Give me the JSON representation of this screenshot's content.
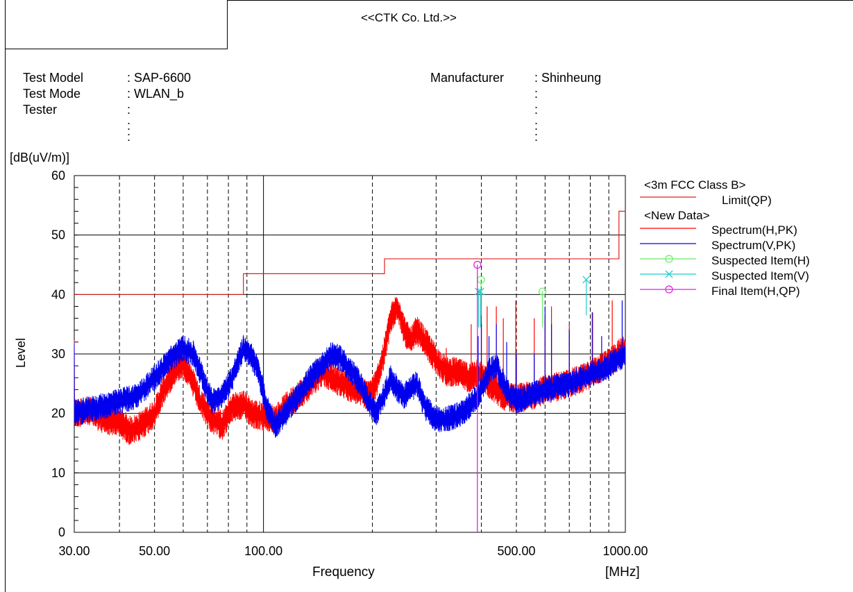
{
  "header": {
    "company": "<<CTK Co. Ltd.>>",
    "test_model_label": "Test Model",
    "test_model_value": ": SAP-6600",
    "test_mode_label": "Test Mode",
    "test_mode_value": ": WLAN_b",
    "tester_label": "Tester",
    "tester_value": ":",
    "manufacturer_label": "Manufacturer",
    "manufacturer_value": ": Shinheung"
  },
  "chart_data": {
    "type": "line",
    "ylabel": "Level",
    "yunit": "[dB(uV/m)]",
    "xlabel": "Frequency",
    "xunit": "[MHz]",
    "xscale": "log",
    "xlim": [
      30,
      1000
    ],
    "ylim": [
      0,
      60
    ],
    "x_ticks": [
      {
        "value": 30,
        "label": "30.00"
      },
      {
        "value": 50,
        "label": "50.00"
      },
      {
        "value": 100,
        "label": "100.00"
      },
      {
        "value": 500,
        "label": "500.00"
      },
      {
        "value": 1000,
        "label": "1000.00"
      }
    ],
    "y_ticks": [
      0,
      10,
      20,
      30,
      40,
      50,
      60
    ],
    "legend": {
      "position": "right",
      "group1": "<3m FCC Class B>",
      "group2": "<New Data>"
    },
    "colors": {
      "limit": "#e02020",
      "spectrum_h": "#ff0000",
      "spectrum_v": "#0000ee",
      "suspected_h": "#66ee66",
      "suspected_v": "#22cccc",
      "final_h": "#dd22dd"
    },
    "limit": {
      "name": "Limit(QP)",
      "steps": [
        {
          "x0": 30,
          "x1": 88,
          "y": 40
        },
        {
          "x0": 88,
          "x1": 216,
          "y": 43.5
        },
        {
          "x0": 216,
          "x1": 960,
          "y": 46
        },
        {
          "x0": 960,
          "x1": 1000,
          "y": 54
        }
      ]
    },
    "series": [
      {
        "name": "Spectrum(H,PK)",
        "points": [
          [
            30,
            20
          ],
          [
            33,
            20.5
          ],
          [
            36,
            19
          ],
          [
            40,
            18.5
          ],
          [
            43,
            17
          ],
          [
            46,
            18
          ],
          [
            50,
            20
          ],
          [
            53,
            24
          ],
          [
            57,
            27.5
          ],
          [
            60,
            28.5
          ],
          [
            63,
            26
          ],
          [
            67,
            22
          ],
          [
            72,
            19
          ],
          [
            77,
            18
          ],
          [
            82,
            21
          ],
          [
            88,
            21.5
          ],
          [
            93,
            20
          ],
          [
            100,
            19.5
          ],
          [
            108,
            19
          ],
          [
            115,
            21
          ],
          [
            125,
            23
          ],
          [
            135,
            25
          ],
          [
            145,
            27
          ],
          [
            155,
            26
          ],
          [
            165,
            25
          ],
          [
            180,
            24
          ],
          [
            195,
            23
          ],
          [
            205,
            25
          ],
          [
            215,
            30
          ],
          [
            225,
            36
          ],
          [
            235,
            38
          ],
          [
            245,
            34
          ],
          [
            255,
            32
          ],
          [
            265,
            34
          ],
          [
            280,
            32
          ],
          [
            300,
            29
          ],
          [
            320,
            27
          ],
          [
            340,
            27
          ],
          [
            370,
            26
          ],
          [
            390,
            27
          ],
          [
            420,
            25
          ],
          [
            460,
            23
          ],
          [
            500,
            22.5
          ],
          [
            550,
            23
          ],
          [
            600,
            24
          ],
          [
            700,
            25
          ],
          [
            800,
            26.5
          ],
          [
            900,
            28.5
          ],
          [
            1000,
            31
          ]
        ],
        "spikes": [
          [
            264,
            34
          ],
          [
            320,
            31
          ],
          [
            375,
            35
          ],
          [
            400,
            40
          ],
          [
            415,
            38
          ],
          [
            440,
            38
          ],
          [
            460,
            36
          ],
          [
            498,
            39
          ],
          [
            560,
            36
          ],
          [
            600,
            36
          ],
          [
            625,
            38
          ],
          [
            700,
            35
          ],
          [
            812,
            37
          ],
          [
            920,
            39
          ]
        ]
      },
      {
        "name": "Spectrum(V,PK)",
        "points": [
          [
            30,
            20
          ],
          [
            35,
            21
          ],
          [
            40,
            22
          ],
          [
            45,
            23
          ],
          [
            50,
            26
          ],
          [
            55,
            29
          ],
          [
            60,
            31
          ],
          [
            64,
            30
          ],
          [
            68,
            26
          ],
          [
            72,
            22
          ],
          [
            77,
            23
          ],
          [
            82,
            26
          ],
          [
            88,
            31
          ],
          [
            92,
            30
          ],
          [
            97,
            27
          ],
          [
            102,
            21
          ],
          [
            108,
            18
          ],
          [
            115,
            20
          ],
          [
            125,
            23
          ],
          [
            135,
            26
          ],
          [
            145,
            28
          ],
          [
            155,
            30
          ],
          [
            165,
            29
          ],
          [
            175,
            27
          ],
          [
            185,
            25
          ],
          [
            195,
            22
          ],
          [
            205,
            20
          ],
          [
            215,
            23
          ],
          [
            225,
            26
          ],
          [
            235,
            24
          ],
          [
            245,
            23
          ],
          [
            255,
            24
          ],
          [
            265,
            25
          ],
          [
            280,
            21
          ],
          [
            300,
            19
          ],
          [
            320,
            19
          ],
          [
            340,
            19.5
          ],
          [
            360,
            20.5
          ],
          [
            380,
            22
          ],
          [
            400,
            24
          ],
          [
            420,
            27
          ],
          [
            440,
            28
          ],
          [
            460,
            25
          ],
          [
            480,
            23
          ],
          [
            500,
            22
          ],
          [
            550,
            23
          ],
          [
            600,
            24
          ],
          [
            700,
            25
          ],
          [
            800,
            26.5
          ],
          [
            900,
            28
          ],
          [
            1000,
            30
          ]
        ],
        "spikes": [
          [
            392,
            33
          ],
          [
            400,
            35
          ],
          [
            420,
            33
          ],
          [
            440,
            35
          ],
          [
            470,
            32
          ],
          [
            500,
            30
          ],
          [
            560,
            30
          ],
          [
            600,
            38
          ],
          [
            625,
            35
          ],
          [
            700,
            34
          ],
          [
            810,
            37
          ],
          [
            860,
            33
          ],
          [
            980,
            39
          ]
        ]
      }
    ],
    "suspected_h": {
      "name": "Suspected Item(H)",
      "points": [
        [
          399,
          42.5
        ],
        [
          590,
          40.5
        ]
      ]
    },
    "suspected_v": {
      "name": "Suspected Item(V)",
      "points": [
        [
          393,
          40.5
        ],
        [
          398,
          40.5
        ],
        [
          780,
          42.5
        ]
      ]
    },
    "final_h": {
      "name": "Final Item(H,QP)",
      "points": [
        [
          390,
          45
        ]
      ]
    }
  }
}
